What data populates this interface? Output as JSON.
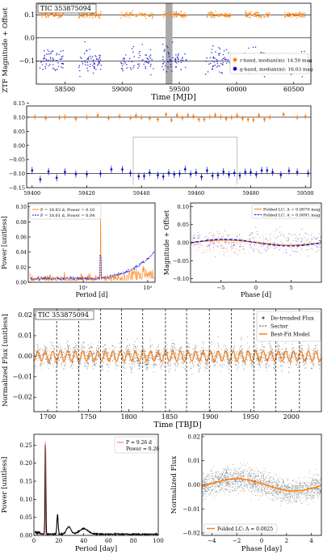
{
  "chart_data": [
    {
      "id": "ztf",
      "type": "scatter",
      "title": "TIC 353875094",
      "xlabel": "Time [MJD]",
      "ylabel": "ZTF Magnitude + Offset",
      "xlim": [
        58250,
        60650
      ],
      "ylim": [
        -0.2,
        0.15
      ],
      "xticks": [
        58500,
        59000,
        59500,
        60000,
        60500
      ],
      "yticks": [
        0.1,
        0.0,
        -0.1
      ],
      "ytick_labels": [
        "0.1",
        "0.0",
        "−0.1"
      ],
      "hlines": [
        0.1,
        0.0,
        -0.1
      ],
      "shaded_span": [
        59380,
        59440
      ],
      "legend": "lower-right",
      "series": [
        {
          "name": "r-band, median(m): 14.59 mag",
          "color": "#ff7f0e",
          "marker": "o",
          "center": 0.1,
          "scatter": 0.025
        },
        {
          "name": "g-band, median(m): 16.03 mag",
          "color": "#1010d0",
          "marker": "o",
          "center": -0.1,
          "scatter": 0.04
        }
      ],
      "observing_seasons": [
        [
          58280,
          58490
        ],
        [
          58620,
          58820
        ],
        [
          58990,
          59280
        ],
        [
          59350,
          59560
        ],
        [
          59730,
          59950
        ],
        [
          60070,
          60290
        ],
        [
          60420,
          60600
        ]
      ]
    },
    {
      "id": "ztf-zoom",
      "type": "scatter",
      "xlim": [
        59398,
        59502
      ],
      "ylim": [
        -0.15,
        0.14
      ],
      "xticks": [
        59400,
        59420,
        59440,
        59460,
        59480,
        59500
      ],
      "yticks": [
        0.15,
        0.1,
        0.05,
        0.0,
        -0.05,
        -0.1,
        -0.15
      ],
      "ytick_labels": [
        "0.15",
        "0.10",
        "0.05",
        "0.00",
        "−0.05",
        "−0.10",
        "−0.15"
      ],
      "hlines": [
        0.1,
        -0.1
      ],
      "sector_lines": [
        59437,
        59475
      ],
      "series": [
        {
          "name": "r-band",
          "color": "#ff7f0e",
          "center": 0.1
        },
        {
          "name": "g-band",
          "color": "#1010d0",
          "center": -0.1
        }
      ],
      "r_times": [
        59401,
        59405,
        59410,
        59412,
        59416,
        59420,
        59424,
        59428,
        59432,
        59436,
        59438,
        59440,
        59443,
        59446,
        59449,
        59451,
        59453,
        59455,
        59457,
        59459,
        59461,
        59463,
        59465,
        59467,
        59469,
        59471,
        59473,
        59475,
        59477,
        59479,
        59481,
        59483,
        59485,
        59487,
        59492,
        59497,
        59500
      ],
      "g_times": [
        59400,
        59403,
        59406,
        59409,
        59412,
        59416,
        59420,
        59425,
        59429,
        59433,
        59436,
        59439,
        59441,
        59443,
        59446,
        59448,
        59450,
        59452,
        59454,
        59456,
        59458,
        59460,
        59462,
        59464,
        59466,
        59468,
        59470,
        59472,
        59474,
        59476,
        59478,
        59480,
        59482,
        59484,
        59486,
        59488,
        59491,
        59494,
        59497,
        59501
      ]
    },
    {
      "id": "ztf-periodogram",
      "type": "line",
      "xlabel": "Period [d]",
      "ylabel": "Power [unitless]",
      "xscale": "log",
      "xlim": [
        1.4,
        130
      ],
      "ylim": [
        0,
        0.105
      ],
      "yticks": [
        0.0,
        0.02,
        0.04,
        0.06,
        0.08,
        0.1
      ],
      "ytick_labels": [
        "0.00",
        "0.02",
        "0.04",
        "0.06",
        "0.08",
        "0.10"
      ],
      "xtick_labels": [
        "10¹",
        "10²"
      ],
      "legend": "top-left",
      "series": [
        {
          "name": "P = 18.63 d, Power = 0.10",
          "color": "#ff7f0e",
          "style": "solid",
          "peak_period": 18.63,
          "peak_power": 0.1
        },
        {
          "name": "P = 18.61 d, Power = 0.04",
          "color": "#1010d0",
          "style": "dashed",
          "peak_period": 18.61,
          "peak_power": 0.04
        }
      ]
    },
    {
      "id": "ztf-folded",
      "type": "scatter",
      "xlabel": "Phase [d]",
      "ylabel": "Magnitude + Offset",
      "xlim": [
        -9.3,
        9.3
      ],
      "ylim": [
        -0.11,
        0.11
      ],
      "xticks": [
        -5,
        0,
        5
      ],
      "xtick_labels": [
        "−5",
        "0",
        "5"
      ],
      "yticks": [
        0.1,
        0.05,
        0.0,
        -0.05,
        -0.1
      ],
      "ytick_labels": [
        "0.10",
        "0.05",
        "0.00",
        "−0.05",
        "−0.10"
      ],
      "legend": "top-right",
      "series": [
        {
          "name": "Folded LC: A = 0.0070 mag",
          "color": "#ff7f0e",
          "style": "solid",
          "amplitude": 0.007
        },
        {
          "name": "Folded LC: A = 0.0091 mag",
          "color": "#1010d0",
          "style": "dashed",
          "amplitude": 0.0091
        }
      ]
    },
    {
      "id": "tess",
      "type": "scatter",
      "title": "TIC 353875094",
      "xlabel": "Time [TBJD]",
      "ylabel": "Normalized Flux [unitless]",
      "xlim": [
        1683,
        2037
      ],
      "ylim": [
        -0.027,
        0.023
      ],
      "xticks": [
        1700,
        1750,
        1800,
        1850,
        1900,
        1950,
        2000
      ],
      "yticks": [
        0.02,
        0.01,
        0.0,
        -0.01,
        -0.02
      ],
      "ytick_labels": [
        "0.02",
        "0.01",
        "0.00",
        "−0.01",
        "−0.02"
      ],
      "sector_lines": [
        1711,
        1738,
        1765,
        1791,
        1817,
        1845,
        1871,
        1899,
        1926,
        1954,
        1981,
        2010
      ],
      "period_days": 9.26,
      "amplitude": 0.0025,
      "legend": "top-right",
      "series": [
        {
          "name": "De-trended Flux",
          "color": "#000000",
          "marker": "o"
        },
        {
          "name": "Sector",
          "color": "#000000",
          "style": "dashed"
        },
        {
          "name": "Best-Fit Model",
          "color": "#ff7f0e",
          "style": "solid"
        }
      ]
    },
    {
      "id": "tess-periodogram",
      "type": "line",
      "xlabel": "Period [day]",
      "ylabel": "Power [unitless]",
      "xlim": [
        0,
        100
      ],
      "ylim": [
        0,
        0.28
      ],
      "xticks": [
        0,
        20,
        40,
        60,
        80,
        100
      ],
      "yticks": [
        0.0,
        0.05,
        0.1,
        0.15,
        0.2,
        0.25
      ],
      "ytick_labels": [
        "0.00",
        "0.05",
        "0.10",
        "0.15",
        "0.20",
        "0.25"
      ],
      "legend": "top-right",
      "legend_lines": [
        "P = 9.26 d",
        "Power = 0.26"
      ],
      "peak_period": 9.26,
      "peak_power": 0.26,
      "series": [
        {
          "name": "",
          "color": "#000000"
        }
      ]
    },
    {
      "id": "tess-folded",
      "type": "scatter",
      "xlabel": "Phase [day]",
      "ylabel": "Normalized Flux",
      "xlim": [
        -4.8,
        4.8
      ],
      "ylim": [
        -0.021,
        0.021
      ],
      "xticks": [
        -4,
        -2,
        0,
        2,
        4
      ],
      "xtick_labels": [
        "−4",
        "−2",
        "0",
        "2",
        "4"
      ],
      "yticks": [
        0.02,
        0.01,
        0.0,
        -0.01,
        -0.02
      ],
      "ytick_labels": [
        "0.02",
        "0.01",
        "0.00",
        "−0.01",
        "−0.02"
      ],
      "legend": "bottom-left",
      "amplitude": 0.0025,
      "series": [
        {
          "name": "Folded LC: A = 0.0025",
          "color": "#ff7f0e",
          "style": "solid"
        }
      ]
    }
  ]
}
